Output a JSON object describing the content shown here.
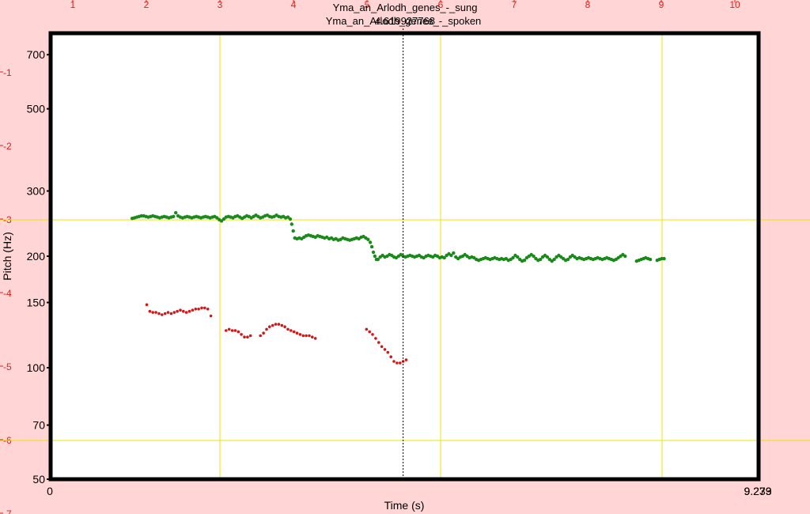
{
  "window": {
    "title_sung": "Yma_an_Arlodh_genes_-_sung",
    "title_spoken": "Yma_an_Arlodh_genes_-_spoken",
    "cursor_label": "4.619927768"
  },
  "colors": {
    "background": "#ffd5d5",
    "plot_bg": "#ffffff",
    "grid": "#f0e000",
    "ruler_text": "#e0201a",
    "sung_series": "#1a8a1a",
    "spoken_series": "#d01818"
  },
  "ruler": {
    "top_numbers": [
      "1",
      "2",
      "3",
      "4",
      "5",
      "6",
      "7",
      "8",
      "9",
      "10"
    ],
    "left_numbers": [
      "-1",
      "-2",
      "-3",
      "-4",
      "-5",
      "-6",
      "-7"
    ]
  },
  "chart_data": {
    "type": "scatter",
    "title": "",
    "xlabel": "Time (s)",
    "ylabel": "Pitch (Hz)",
    "x_start_label": "0",
    "x_end_label": "9.279",
    "x_end_label_overlap": "9.233",
    "xlim": [
      0,
      9.279
    ],
    "ylim": [
      50,
      800
    ],
    "y_scale": "log",
    "y_ticks": [
      "50",
      "70",
      "100",
      "150",
      "200",
      "300",
      "500",
      "700"
    ],
    "y_tick_values": [
      50,
      70,
      100,
      150,
      200,
      300,
      500,
      700
    ],
    "cursor_time": 4.62,
    "series": [
      {
        "name": "Yma_an_Arlodh_genes_-_sung",
        "points": [
          [
            1.07,
            253
          ],
          [
            1.1,
            254
          ],
          [
            1.13,
            255
          ],
          [
            1.16,
            256
          ],
          [
            1.19,
            257
          ],
          [
            1.22,
            257
          ],
          [
            1.25,
            256
          ],
          [
            1.28,
            255
          ],
          [
            1.31,
            256
          ],
          [
            1.34,
            257
          ],
          [
            1.37,
            256
          ],
          [
            1.4,
            255
          ],
          [
            1.43,
            254
          ],
          [
            1.46,
            255
          ],
          [
            1.49,
            256
          ],
          [
            1.52,
            255
          ],
          [
            1.55,
            254
          ],
          [
            1.58,
            255
          ],
          [
            1.61,
            256
          ],
          [
            1.64,
            262
          ],
          [
            1.67,
            257
          ],
          [
            1.7,
            255
          ],
          [
            1.73,
            254
          ],
          [
            1.76,
            255
          ],
          [
            1.79,
            256
          ],
          [
            1.82,
            255
          ],
          [
            1.85,
            254
          ],
          [
            1.88,
            255
          ],
          [
            1.91,
            256
          ],
          [
            1.94,
            255
          ],
          [
            1.97,
            254
          ],
          [
            2.0,
            255
          ],
          [
            2.03,
            256
          ],
          [
            2.06,
            255
          ],
          [
            2.09,
            254
          ],
          [
            2.12,
            255
          ],
          [
            2.15,
            256
          ],
          [
            2.18,
            254
          ],
          [
            2.21,
            251
          ],
          [
            2.24,
            249
          ],
          [
            2.27,
            252
          ],
          [
            2.3,
            255
          ],
          [
            2.33,
            256
          ],
          [
            2.36,
            255
          ],
          [
            2.39,
            254
          ],
          [
            2.42,
            256
          ],
          [
            2.45,
            257
          ],
          [
            2.48,
            255
          ],
          [
            2.51,
            253
          ],
          [
            2.54,
            255
          ],
          [
            2.57,
            257
          ],
          [
            2.6,
            256
          ],
          [
            2.63,
            254
          ],
          [
            2.66,
            256
          ],
          [
            2.69,
            258
          ],
          [
            2.72,
            256
          ],
          [
            2.75,
            254
          ],
          [
            2.78,
            255
          ],
          [
            2.81,
            257
          ],
          [
            2.84,
            258
          ],
          [
            2.87,
            256
          ],
          [
            2.9,
            255
          ],
          [
            2.93,
            256
          ],
          [
            2.96,
            258
          ],
          [
            2.99,
            256
          ],
          [
            3.02,
            255
          ],
          [
            3.05,
            256
          ],
          [
            3.08,
            254
          ],
          [
            3.11,
            255
          ],
          [
            3.14,
            252
          ],
          [
            3.16,
            244
          ],
          [
            3.18,
            234
          ],
          [
            3.2,
            224
          ],
          [
            3.23,
            223
          ],
          [
            3.26,
            224
          ],
          [
            3.29,
            223
          ],
          [
            3.32,
            225
          ],
          [
            3.35,
            227
          ],
          [
            3.38,
            228
          ],
          [
            3.41,
            227
          ],
          [
            3.44,
            226
          ],
          [
            3.47,
            225
          ],
          [
            3.5,
            227
          ],
          [
            3.53,
            226
          ],
          [
            3.56,
            225
          ],
          [
            3.59,
            224
          ],
          [
            3.62,
            225
          ],
          [
            3.65,
            223
          ],
          [
            3.68,
            224
          ],
          [
            3.71,
            222
          ],
          [
            3.74,
            223
          ],
          [
            3.77,
            221
          ],
          [
            3.8,
            222
          ],
          [
            3.83,
            224
          ],
          [
            3.86,
            223
          ],
          [
            3.89,
            222
          ],
          [
            3.92,
            221
          ],
          [
            3.95,
            222
          ],
          [
            3.98,
            223
          ],
          [
            4.01,
            224
          ],
          [
            4.04,
            223
          ],
          [
            4.07,
            225
          ],
          [
            4.1,
            226
          ],
          [
            4.13,
            224
          ],
          [
            4.16,
            222
          ],
          [
            4.19,
            218
          ],
          [
            4.21,
            212
          ],
          [
            4.23,
            205
          ],
          [
            4.25,
            200
          ],
          [
            4.27,
            196
          ],
          [
            4.29,
            196
          ],
          [
            4.32,
            199
          ],
          [
            4.35,
            201
          ],
          [
            4.38,
            199
          ],
          [
            4.41,
            200
          ],
          [
            4.44,
            202
          ],
          [
            4.47,
            201
          ],
          [
            4.5,
            199
          ],
          [
            4.53,
            198
          ],
          [
            4.56,
            200
          ],
          [
            4.59,
            202
          ],
          [
            4.62,
            200
          ],
          [
            4.65,
            199
          ],
          [
            4.68,
            200
          ],
          [
            4.71,
            201
          ],
          [
            4.74,
            200
          ],
          [
            4.77,
            199
          ],
          [
            4.8,
            200
          ],
          [
            4.83,
            201
          ],
          [
            4.86,
            199
          ],
          [
            4.89,
            198
          ],
          [
            4.92,
            200
          ],
          [
            4.95,
            201
          ],
          [
            4.98,
            200
          ],
          [
            5.01,
            199
          ],
          [
            5.04,
            201
          ],
          [
            5.07,
            200
          ],
          [
            5.1,
            198
          ],
          [
            5.13,
            199
          ],
          [
            5.16,
            198
          ],
          [
            5.19,
            201
          ],
          [
            5.22,
            203
          ],
          [
            5.25,
            201
          ],
          [
            5.28,
            204
          ],
          [
            5.31,
            199
          ],
          [
            5.34,
            197
          ],
          [
            5.37,
            199
          ],
          [
            5.4,
            200
          ],
          [
            5.43,
            202
          ],
          [
            5.46,
            200
          ],
          [
            5.49,
            198
          ],
          [
            5.52,
            199
          ],
          [
            5.55,
            198
          ],
          [
            5.58,
            196
          ],
          [
            5.61,
            195
          ],
          [
            5.64,
            196
          ],
          [
            5.67,
            197
          ],
          [
            5.7,
            198
          ],
          [
            5.73,
            197
          ],
          [
            5.76,
            196
          ],
          [
            5.79,
            197
          ],
          [
            5.82,
            198
          ],
          [
            5.85,
            197
          ],
          [
            5.88,
            196
          ],
          [
            5.91,
            197
          ],
          [
            5.94,
            196
          ],
          [
            5.97,
            197
          ],
          [
            6.0,
            195
          ],
          [
            6.03,
            196
          ],
          [
            6.06,
            198
          ],
          [
            6.09,
            201
          ],
          [
            6.12,
            199
          ],
          [
            6.15,
            196
          ],
          [
            6.18,
            194
          ],
          [
            6.21,
            195
          ],
          [
            6.24,
            198
          ],
          [
            6.27,
            200
          ],
          [
            6.3,
            202
          ],
          [
            6.33,
            200
          ],
          [
            6.36,
            197
          ],
          [
            6.39,
            195
          ],
          [
            6.42,
            196
          ],
          [
            6.45,
            199
          ],
          [
            6.48,
            201
          ],
          [
            6.51,
            199
          ],
          [
            6.54,
            196
          ],
          [
            6.57,
            194
          ],
          [
            6.6,
            196
          ],
          [
            6.63,
            199
          ],
          [
            6.66,
            201
          ],
          [
            6.69,
            199
          ],
          [
            6.72,
            197
          ],
          [
            6.75,
            195
          ],
          [
            6.78,
            196
          ],
          [
            6.81,
            199
          ],
          [
            6.84,
            201
          ],
          [
            6.87,
            199
          ],
          [
            6.9,
            197
          ],
          [
            6.93,
            198
          ],
          [
            6.96,
            197
          ],
          [
            6.99,
            196
          ],
          [
            7.02,
            197
          ],
          [
            7.05,
            198
          ],
          [
            7.08,
            197
          ],
          [
            7.11,
            196
          ],
          [
            7.14,
            197
          ],
          [
            7.17,
            198
          ],
          [
            7.2,
            197
          ],
          [
            7.23,
            196
          ],
          [
            7.26,
            197
          ],
          [
            7.29,
            198
          ],
          [
            7.32,
            197
          ],
          [
            7.35,
            196
          ],
          [
            7.38,
            195
          ],
          [
            7.41,
            196
          ],
          [
            7.44,
            198
          ],
          [
            7.47,
            200
          ],
          [
            7.5,
            202
          ],
          [
            7.53,
            200
          ],
          [
            7.68,
            194
          ],
          [
            7.71,
            195
          ],
          [
            7.74,
            196
          ],
          [
            7.77,
            197
          ],
          [
            7.8,
            198
          ],
          [
            7.83,
            197
          ],
          [
            7.86,
            196
          ],
          [
            7.95,
            195
          ],
          [
            7.98,
            196
          ],
          [
            8.01,
            197
          ],
          [
            8.04,
            197
          ]
        ]
      },
      {
        "name": "Yma_an_Arlodh_genes_-_spoken",
        "points": [
          [
            1.26,
            148
          ],
          [
            1.3,
            142
          ],
          [
            1.34,
            141
          ],
          [
            1.38,
            141
          ],
          [
            1.42,
            140
          ],
          [
            1.46,
            139
          ],
          [
            1.5,
            140
          ],
          [
            1.54,
            141
          ],
          [
            1.58,
            140
          ],
          [
            1.62,
            141
          ],
          [
            1.66,
            142
          ],
          [
            1.7,
            143
          ],
          [
            1.74,
            142
          ],
          [
            1.78,
            141
          ],
          [
            1.82,
            142
          ],
          [
            1.86,
            143
          ],
          [
            1.9,
            144
          ],
          [
            1.94,
            144
          ],
          [
            1.98,
            145
          ],
          [
            2.02,
            145
          ],
          [
            2.06,
            144
          ],
          [
            2.1,
            138
          ],
          [
            2.3,
            126
          ],
          [
            2.34,
            127
          ],
          [
            2.38,
            126
          ],
          [
            2.42,
            126
          ],
          [
            2.46,
            125
          ],
          [
            2.5,
            123
          ],
          [
            2.54,
            121
          ],
          [
            2.58,
            121
          ],
          [
            2.62,
            122
          ],
          [
            2.75,
            122
          ],
          [
            2.79,
            124
          ],
          [
            2.83,
            127
          ],
          [
            2.87,
            129
          ],
          [
            2.91,
            130
          ],
          [
            2.95,
            131
          ],
          [
            2.99,
            131
          ],
          [
            3.03,
            130
          ],
          [
            3.07,
            129
          ],
          [
            3.11,
            127
          ],
          [
            3.15,
            126
          ],
          [
            3.19,
            125
          ],
          [
            3.23,
            124
          ],
          [
            3.27,
            123
          ],
          [
            3.31,
            122
          ],
          [
            3.35,
            122
          ],
          [
            3.39,
            122
          ],
          [
            3.43,
            121
          ],
          [
            3.47,
            120
          ],
          [
            4.14,
            127
          ],
          [
            4.18,
            125
          ],
          [
            4.22,
            123
          ],
          [
            4.26,
            120
          ],
          [
            4.3,
            117
          ],
          [
            4.34,
            114
          ],
          [
            4.38,
            112
          ],
          [
            4.42,
            110
          ],
          [
            4.46,
            107
          ],
          [
            4.5,
            104
          ],
          [
            4.54,
            103
          ],
          [
            4.58,
            103
          ],
          [
            4.62,
            104
          ],
          [
            4.66,
            105
          ]
        ]
      }
    ]
  }
}
